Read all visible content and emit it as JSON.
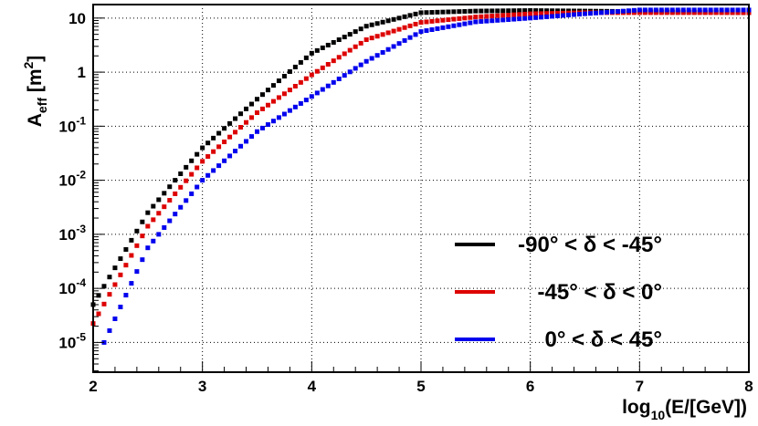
{
  "chart_data": {
    "type": "scatter",
    "title": "",
    "xlabel": {
      "base": "log",
      "sub": "10",
      "rest": "(E/[GeV])"
    },
    "ylabel": {
      "base": "A",
      "sub": "eff",
      "unit_open": " [m",
      "sup": "2",
      "unit_close": "]"
    },
    "x_range": [
      2,
      8
    ],
    "y_range_log10": [
      -5.55,
      1.25
    ],
    "y_scale": "log",
    "grid": true,
    "x_ticks": [
      2,
      3,
      4,
      5,
      6,
      7,
      8
    ],
    "x_tick_labels": [
      "2",
      "3",
      "4",
      "5",
      "6",
      "7",
      "8"
    ],
    "y_ticks": [
      {
        "exp": 1,
        "label": "10",
        "sup": ""
      },
      {
        "exp": 0,
        "label": "1",
        "sup": ""
      },
      {
        "exp": -1,
        "label": "10",
        "sup": "-1"
      },
      {
        "exp": -2,
        "label": "10",
        "sup": "-2"
      },
      {
        "exp": -3,
        "label": "10",
        "sup": "-3"
      },
      {
        "exp": -4,
        "label": "10",
        "sup": "-4"
      },
      {
        "exp": -5,
        "label": "10",
        "sup": "-5"
      }
    ],
    "legend_position": "lower-right",
    "series": [
      {
        "name": "-90° < δ < -45°",
        "color": "#000000",
        "points_log10": [
          [
            2.0,
            -4.3
          ],
          [
            2.5,
            -2.6
          ],
          [
            3.0,
            -1.4
          ],
          [
            3.5,
            -0.5
          ],
          [
            4.0,
            0.35
          ],
          [
            4.5,
            0.85
          ],
          [
            5.0,
            1.1
          ],
          [
            5.5,
            1.13
          ],
          [
            6.0,
            1.14
          ],
          [
            6.5,
            1.13
          ],
          [
            7.0,
            1.12
          ],
          [
            7.5,
            1.11
          ],
          [
            8.0,
            1.1
          ]
        ]
      },
      {
        "name": "-45° < δ <   0°",
        "color": "#dd0000",
        "points_log10": [
          [
            2.0,
            -4.65
          ],
          [
            2.5,
            -2.85
          ],
          [
            3.0,
            -1.65
          ],
          [
            3.5,
            -0.75
          ],
          [
            4.0,
            -0.05
          ],
          [
            4.5,
            0.6
          ],
          [
            5.0,
            0.92
          ],
          [
            5.5,
            1.02
          ],
          [
            6.0,
            1.08
          ],
          [
            6.5,
            1.1
          ],
          [
            7.0,
            1.1
          ],
          [
            7.5,
            1.1
          ],
          [
            8.0,
            1.1
          ]
        ]
      },
      {
        "name": "0° < δ <  45°",
        "color": "#0000ee",
        "points_log10": [
          [
            2.1,
            -5.0
          ],
          [
            2.5,
            -3.25
          ],
          [
            3.0,
            -2.0
          ],
          [
            3.5,
            -1.1
          ],
          [
            4.0,
            -0.45
          ],
          [
            4.5,
            0.2
          ],
          [
            5.0,
            0.75
          ],
          [
            5.5,
            0.93
          ],
          [
            6.0,
            1.0
          ],
          [
            6.5,
            1.08
          ],
          [
            7.0,
            1.15
          ],
          [
            7.5,
            1.15
          ],
          [
            8.0,
            1.15
          ]
        ]
      }
    ]
  }
}
